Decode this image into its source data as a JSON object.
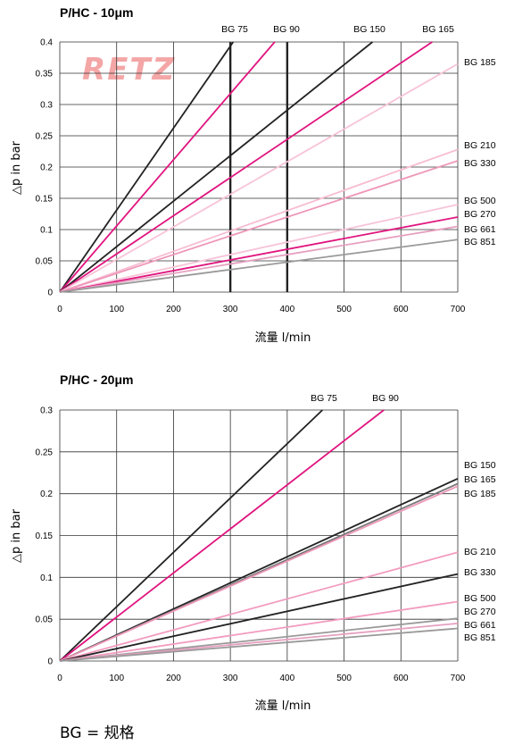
{
  "logo": {
    "text": "RETZ",
    "color": "#f4a6a6"
  },
  "footnote": "BG = 规格",
  "chart_data": [
    {
      "type": "line",
      "title": "P/HC - 10μm",
      "xlabel": "流量 l/min",
      "ylabel": "△p in bar",
      "xlim": [
        0,
        700
      ],
      "ylim": [
        0,
        0.4
      ],
      "xticks": [
        0,
        100,
        200,
        300,
        400,
        500,
        600,
        700
      ],
      "yticks": [
        0,
        0.05,
        0.1,
        0.15,
        0.2,
        0.25,
        0.3,
        0.35,
        0.4
      ],
      "grid": true,
      "series": [
        {
          "name": "BG 75",
          "color": "#222222",
          "points": [
            [
              0,
              0
            ],
            [
              305,
              0.4
            ]
          ]
        },
        {
          "name": "BG 90",
          "color": "#e0157f",
          "points": [
            [
              0,
              0
            ],
            [
              378,
              0.4
            ]
          ]
        },
        {
          "name": "BG 150",
          "color": "#222222",
          "points": [
            [
              0,
              0
            ],
            [
              550,
              0.4
            ]
          ]
        },
        {
          "name": "BG 165",
          "color": "#e0157f",
          "points": [
            [
              0,
              0
            ],
            [
              655,
              0.4
            ]
          ]
        },
        {
          "name": "BG 185",
          "color": "#f7c3d8",
          "points": [
            [
              0,
              0
            ],
            [
              700,
              0.365
            ]
          ]
        },
        {
          "name": "BG 210",
          "color": "#f7bcd2",
          "points": [
            [
              0,
              0
            ],
            [
              700,
              0.228
            ]
          ]
        },
        {
          "name": "BG 330",
          "color": "#ee97b8",
          "points": [
            [
              0,
              0
            ],
            [
              700,
              0.21
            ]
          ]
        },
        {
          "name": "BG 500",
          "color": "#f7c3d8",
          "points": [
            [
              0,
              0
            ],
            [
              700,
              0.14
            ]
          ]
        },
        {
          "name": "BG 270",
          "color": "#e0157f",
          "points": [
            [
              0,
              0
            ],
            [
              700,
              0.12
            ]
          ]
        },
        {
          "name": "BG 661",
          "color": "#e6a0c0",
          "points": [
            [
              0,
              0
            ],
            [
              700,
              0.105
            ]
          ]
        },
        {
          "name": "BG 851",
          "color": "#999999",
          "points": [
            [
              0,
              0
            ],
            [
              700,
              0.084
            ]
          ]
        }
      ],
      "verticals": [
        {
          "x": 300,
          "color": "#222222"
        },
        {
          "x": 400,
          "color": "#222222"
        }
      ]
    },
    {
      "type": "line",
      "title": "P/HC - 20μm",
      "xlabel": "流量 l/min",
      "ylabel": "△p in bar",
      "xlim": [
        0,
        700
      ],
      "ylim": [
        0,
        0.3
      ],
      "xticks": [
        0,
        100,
        200,
        300,
        400,
        500,
        600,
        700
      ],
      "yticks": [
        0,
        0.05,
        0.1,
        0.15,
        0.2,
        0.25,
        0.3
      ],
      "grid": true,
      "series": [
        {
          "name": "BG 75",
          "color": "#222222",
          "points": [
            [
              0,
              0
            ],
            [
              462,
              0.3
            ]
          ]
        },
        {
          "name": "BG 90",
          "color": "#e0157f",
          "points": [
            [
              0,
              0
            ],
            [
              570,
              0.3
            ]
          ]
        },
        {
          "name": "BG 150",
          "color": "#222222",
          "points": [
            [
              0,
              0
            ],
            [
              700,
              0.218
            ]
          ]
        },
        {
          "name": "BG 165",
          "color": "#777777",
          "points": [
            [
              0,
              0
            ],
            [
              700,
              0.212
            ]
          ]
        },
        {
          "name": "BG 185",
          "color": "#ee97b8",
          "points": [
            [
              0,
              0
            ],
            [
              700,
              0.209
            ]
          ]
        },
        {
          "name": "BG 210",
          "color": "#f29cc0",
          "points": [
            [
              0,
              0
            ],
            [
              700,
              0.13
            ]
          ]
        },
        {
          "name": "BG 330",
          "color": "#222222",
          "points": [
            [
              0,
              0
            ],
            [
              700,
              0.104
            ]
          ]
        },
        {
          "name": "BG 500",
          "color": "#f29cc0",
          "points": [
            [
              0,
              0
            ],
            [
              700,
              0.071
            ]
          ]
        },
        {
          "name": "BG 270",
          "color": "#999999",
          "points": [
            [
              0,
              0
            ],
            [
              700,
              0.051
            ]
          ]
        },
        {
          "name": "BG 661",
          "color": "#e6a0c0",
          "points": [
            [
              0,
              0
            ],
            [
              700,
              0.045
            ]
          ]
        },
        {
          "name": "BG 851",
          "color": "#999999",
          "points": [
            [
              0,
              0
            ],
            [
              700,
              0.039
            ]
          ]
        }
      ],
      "verticals": []
    }
  ]
}
